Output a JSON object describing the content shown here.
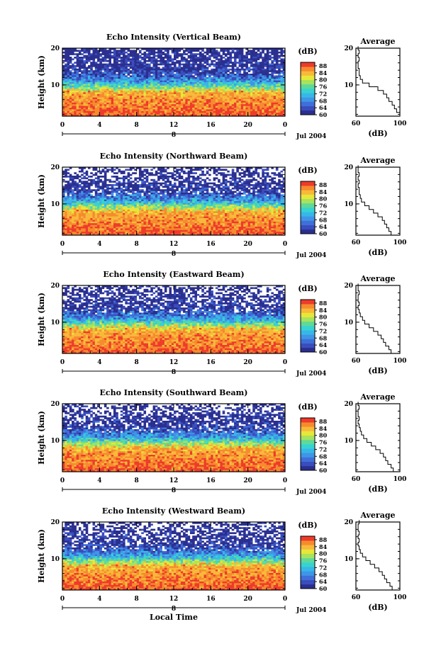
{
  "figure": {
    "xlabel": "Local Time",
    "date_label": "Jul 2004",
    "day_label": "8",
    "avg_title": "Average",
    "cb_unit": "(dB)",
    "avg_xunit": "(dB)",
    "height_label": "Height (km)"
  },
  "chart_data": [
    {
      "type": "heatmap",
      "title": "Echo Intensity (Vertical Beam)",
      "xlabel": "Local Time",
      "ylabel": "Height (km)",
      "x_ticks": [
        "0",
        "4",
        "8",
        "12",
        "16",
        "20",
        "0"
      ],
      "xlim": [
        0,
        24
      ],
      "y_ticks": [
        "10",
        "20"
      ],
      "ylim": [
        1.5,
        20
      ],
      "colorbar": {
        "unit": "(dB)",
        "ticks": [
          "60",
          "64",
          "68",
          "72",
          "76",
          "80",
          "84",
          "88"
        ],
        "range": [
          60,
          90
        ]
      },
      "average_profile": {
        "title": "Average",
        "xlabel": "(dB)",
        "x_ticks": [
          "60",
          "100"
        ],
        "xlim": [
          60,
          100
        ],
        "y_ticks": [
          "10",
          "20"
        ],
        "heights": [
          2,
          3,
          4,
          5,
          6,
          7,
          8,
          9,
          10,
          11,
          12,
          13,
          14,
          15,
          16,
          17,
          18,
          19,
          20
        ],
        "values": [
          100,
          97,
          95,
          93,
          90,
          88,
          85,
          80,
          72,
          66,
          64,
          63,
          63,
          62,
          62,
          63,
          62,
          63,
          62
        ]
      }
    },
    {
      "type": "heatmap",
      "title": "Echo Intensity (Northward Beam)",
      "xlabel": "Local Time",
      "ylabel": "Height (km)",
      "x_ticks": [
        "0",
        "4",
        "8",
        "12",
        "16",
        "20",
        "0"
      ],
      "xlim": [
        0,
        24
      ],
      "y_ticks": [
        "10",
        "20"
      ],
      "ylim": [
        1.5,
        20
      ],
      "colorbar": {
        "unit": "(dB)",
        "ticks": [
          "60",
          "64",
          "68",
          "72",
          "76",
          "80",
          "84",
          "88"
        ],
        "range": [
          60,
          90
        ]
      },
      "average_profile": {
        "title": "Average",
        "xlabel": "(dB)",
        "x_ticks": [
          "60",
          "100"
        ],
        "xlim": [
          60,
          100
        ],
        "y_ticks": [
          "10",
          "20"
        ],
        "heights": [
          2,
          3,
          4,
          5,
          6,
          7,
          8,
          9,
          10,
          11,
          12,
          13,
          14,
          15,
          16,
          17,
          18,
          19,
          20
        ],
        "values": [
          92,
          90,
          88,
          86,
          84,
          80,
          76,
          72,
          68,
          65,
          64,
          63,
          63,
          62,
          63,
          62,
          63,
          62,
          62
        ]
      }
    },
    {
      "type": "heatmap",
      "title": "Echo Intensity (Eastward Beam)",
      "xlabel": "Local Time",
      "ylabel": "Height (km)",
      "x_ticks": [
        "0",
        "4",
        "8",
        "12",
        "16",
        "20",
        "0"
      ],
      "xlim": [
        0,
        24
      ],
      "y_ticks": [
        "10",
        "20"
      ],
      "ylim": [
        1.5,
        20
      ],
      "colorbar": {
        "unit": "(dB)",
        "ticks": [
          "60",
          "64",
          "68",
          "72",
          "76",
          "80",
          "84",
          "88"
        ],
        "range": [
          60,
          90
        ]
      },
      "average_profile": {
        "title": "Average",
        "xlabel": "(dB)",
        "x_ticks": [
          "60",
          "100"
        ],
        "xlim": [
          60,
          100
        ],
        "y_ticks": [
          "10",
          "20"
        ],
        "heights": [
          2,
          3,
          4,
          5,
          6,
          7,
          8,
          9,
          10,
          11,
          12,
          13,
          14,
          15,
          16,
          17,
          18,
          19,
          20
        ],
        "values": [
          92,
          90,
          87,
          85,
          83,
          80,
          76,
          72,
          68,
          66,
          64,
          63,
          62,
          63,
          62,
          62,
          63,
          62,
          62
        ]
      }
    },
    {
      "type": "heatmap",
      "title": "Echo Intensity (Southward Beam)",
      "xlabel": "Local Time",
      "ylabel": "Height (km)",
      "x_ticks": [
        "0",
        "4",
        "8",
        "12",
        "16",
        "20",
        "0"
      ],
      "xlim": [
        0,
        24
      ],
      "y_ticks": [
        "10",
        "20"
      ],
      "ylim": [
        1.5,
        20
      ],
      "colorbar": {
        "unit": "(dB)",
        "ticks": [
          "60",
          "64",
          "68",
          "72",
          "76",
          "80",
          "84",
          "88"
        ],
        "range": [
          60,
          90
        ]
      },
      "average_profile": {
        "title": "Average",
        "xlabel": "(dB)",
        "x_ticks": [
          "60",
          "100"
        ],
        "xlim": [
          60,
          100
        ],
        "y_ticks": [
          "10",
          "20"
        ],
        "heights": [
          2,
          3,
          4,
          5,
          6,
          7,
          8,
          9,
          10,
          11,
          12,
          13,
          14,
          15,
          16,
          17,
          18,
          19,
          20
        ],
        "values": [
          94,
          92,
          89,
          87,
          85,
          82,
          78,
          74,
          70,
          67,
          65,
          64,
          63,
          62,
          63,
          62,
          62,
          63,
          62
        ]
      }
    },
    {
      "type": "heatmap",
      "title": "Echo Intensity (Westward Beam)",
      "xlabel": "Local Time",
      "ylabel": "Height (km)",
      "x_ticks": [
        "0",
        "4",
        "8",
        "12",
        "16",
        "20",
        "0"
      ],
      "xlim": [
        0,
        24
      ],
      "y_ticks": [
        "10",
        "20"
      ],
      "ylim": [
        1.5,
        20
      ],
      "colorbar": {
        "unit": "(dB)",
        "ticks": [
          "60",
          "64",
          "68",
          "72",
          "76",
          "80",
          "84",
          "88"
        ],
        "range": [
          60,
          90
        ]
      },
      "average_profile": {
        "title": "Average",
        "xlabel": "(dB)",
        "x_ticks": [
          "60",
          "100"
        ],
        "xlim": [
          60,
          100
        ],
        "y_ticks": [
          "10",
          "20"
        ],
        "heights": [
          2,
          3,
          4,
          5,
          6,
          7,
          8,
          9,
          10,
          11,
          12,
          13,
          14,
          15,
          16,
          17,
          18,
          19,
          20
        ],
        "values": [
          93,
          91,
          88,
          86,
          84,
          81,
          77,
          73,
          69,
          66,
          64,
          63,
          62,
          63,
          62,
          63,
          62,
          62,
          63
        ]
      }
    }
  ]
}
